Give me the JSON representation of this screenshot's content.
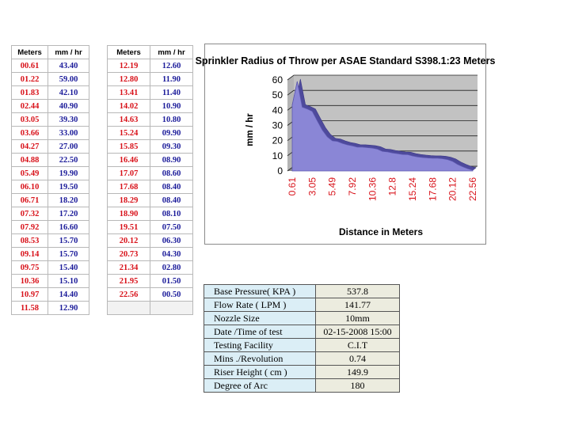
{
  "table_left": {
    "headers": [
      "Meters",
      "mm / hr"
    ],
    "rows": [
      [
        "00.61",
        "43.40"
      ],
      [
        "01.22",
        "59.00"
      ],
      [
        "01.83",
        "42.10"
      ],
      [
        "02.44",
        "40.90"
      ],
      [
        "03.05",
        "39.30"
      ],
      [
        "03.66",
        "33.00"
      ],
      [
        "04.27",
        "27.00"
      ],
      [
        "04.88",
        "22.50"
      ],
      [
        "05.49",
        "19.90"
      ],
      [
        "06.10",
        "19.50"
      ],
      [
        "06.71",
        "18.20"
      ],
      [
        "07.32",
        "17.20"
      ],
      [
        "07.92",
        "16.60"
      ],
      [
        "08.53",
        "15.70"
      ],
      [
        "09.14",
        "15.70"
      ],
      [
        "09.75",
        "15.40"
      ],
      [
        "10.36",
        "15.10"
      ],
      [
        "10.97",
        "14.40"
      ],
      [
        "11.58",
        "12.90"
      ]
    ]
  },
  "table_right": {
    "headers": [
      "Meters",
      "mm / hr"
    ],
    "rows": [
      [
        "12.19",
        "12.60"
      ],
      [
        "12.80",
        "11.90"
      ],
      [
        "13.41",
        "11.40"
      ],
      [
        "14.02",
        "10.90"
      ],
      [
        "14.63",
        "10.80"
      ],
      [
        "15.24",
        "09.90"
      ],
      [
        "15.85",
        "09.30"
      ],
      [
        "16.46",
        "08.90"
      ],
      [
        "17.07",
        "08.60"
      ],
      [
        "17.68",
        "08.40"
      ],
      [
        "18.29",
        "08.40"
      ],
      [
        "18.90",
        "08.10"
      ],
      [
        "19.51",
        "07.50"
      ],
      [
        "20.12",
        "06.30"
      ],
      [
        "20.73",
        "04.30"
      ],
      [
        "21.34",
        "02.80"
      ],
      [
        "21.95",
        "01.50"
      ],
      [
        "22.56",
        "00.50"
      ],
      [
        "",
        ""
      ]
    ]
  },
  "chart_data": {
    "type": "area",
    "title": "Sprinkler Radius of Throw per ASAE Standard S398.1:23 Meters",
    "xlabel": "Distance in Meters",
    "ylabel": "mm / hr",
    "ylim": [
      0,
      60
    ],
    "yticks": [
      "0",
      "10",
      "20",
      "30",
      "40",
      "50",
      "60"
    ],
    "xtick_labels": [
      "0.61",
      "3.05",
      "5.49",
      "7.92",
      "10.36",
      "12.8",
      "15.24",
      "17.68",
      "20.12",
      "22.56"
    ],
    "x": [
      0.61,
      1.22,
      1.83,
      2.44,
      3.05,
      3.66,
      4.27,
      4.88,
      5.49,
      6.1,
      6.71,
      7.32,
      7.92,
      8.53,
      9.14,
      9.75,
      10.36,
      10.97,
      11.58,
      12.19,
      12.8,
      13.41,
      14.02,
      14.63,
      15.24,
      15.85,
      16.46,
      17.07,
      17.68,
      18.29,
      18.9,
      19.51,
      20.12,
      20.73,
      21.34,
      21.95,
      22.56
    ],
    "values": [
      43.4,
      59.0,
      42.1,
      40.9,
      39.3,
      33.0,
      27.0,
      22.5,
      19.9,
      19.5,
      18.2,
      17.2,
      16.6,
      15.7,
      15.7,
      15.4,
      15.1,
      14.4,
      12.9,
      12.6,
      11.9,
      11.4,
      10.9,
      10.8,
      9.9,
      9.3,
      8.9,
      8.6,
      8.4,
      8.4,
      8.1,
      7.5,
      6.3,
      4.3,
      2.8,
      1.5,
      0.5
    ],
    "grid": true,
    "colors": {
      "area_fill": "#8a86d6",
      "area_edge": "#5d58b0",
      "wall": "#c2c2c2",
      "floor": "#8c8c8c",
      "tick_label": "#d8121a"
    }
  },
  "info_table": [
    {
      "label": "Base Pressure( KPA  )",
      "value": "537.8"
    },
    {
      "label": "Flow Rate ( LPM )",
      "value": "141.77"
    },
    {
      "label": "Nozzle Size",
      "value": "10mm"
    },
    {
      "label": "Date /Time of test",
      "value": "02-15-2008  15:00"
    },
    {
      "label": "Testing Facility",
      "value": "C.I.T"
    },
    {
      "label": "Mins ./Revolution",
      "value": "0.74"
    },
    {
      "label": "Riser Height ( cm )",
      "value": "149.9"
    },
    {
      "label": "Degree of Arc",
      "value": "180"
    }
  ]
}
